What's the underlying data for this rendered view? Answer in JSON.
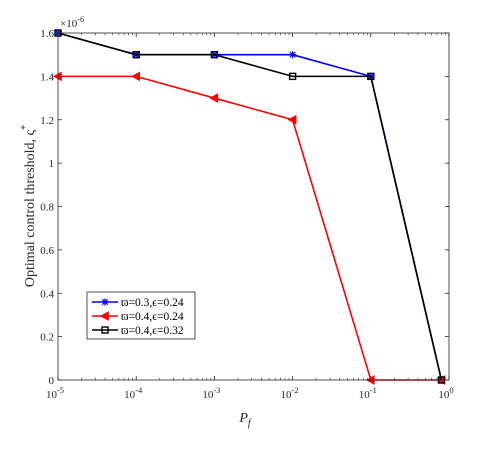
{
  "chart_data": {
    "type": "line",
    "x_scale": "log",
    "x": [
      1e-05,
      0.0001,
      0.001,
      0.01,
      0.1,
      1
    ],
    "x_tick_labels": [
      {
        "base": "10",
        "exp": "-5"
      },
      {
        "base": "10",
        "exp": "-4"
      },
      {
        "base": "10",
        "exp": "-3"
      },
      {
        "base": "10",
        "exp": "-2"
      },
      {
        "base": "10",
        "exp": "-1"
      },
      {
        "base": "10",
        "exp": "0"
      }
    ],
    "y_ticks": [
      0,
      0.2,
      0.4,
      0.6,
      0.8,
      1,
      1.2,
      1.4,
      1.6
    ],
    "y_tick_labels": [
      "0",
      "0.2",
      "0.4",
      "0.6",
      "0.8",
      "1",
      "1.2",
      "1.4",
      "1.6"
    ],
    "ylim": [
      0,
      1.6
    ],
    "y_multiplier": {
      "base": "×10",
      "exp": "-6"
    },
    "xlabel": {
      "main": "P",
      "sub": "f"
    },
    "ylabel": {
      "main": "Optimal control threshold, ς",
      "sup": "*"
    },
    "grid": false,
    "legend_position": "lower-left",
    "series": [
      {
        "name": "ϖ=0.3,ϵ=0.24",
        "color": "#0000ff",
        "marker": "asterisk",
        "x": [
          1e-05,
          0.0001,
          0.001,
          0.01,
          0.1,
          0.8
        ],
        "values": [
          1.6,
          1.5,
          1.5,
          1.5,
          1.4,
          0
        ]
      },
      {
        "name": "ϖ=0.4,ϵ=0.24",
        "color": "#ff0000",
        "marker": "triangle-left",
        "x": [
          1e-05,
          0.0001,
          0.001,
          0.01,
          0.1,
          0.8
        ],
        "values": [
          1.4,
          1.4,
          1.3,
          1.2,
          0,
          0
        ]
      },
      {
        "name": "ϖ=0.4,ϵ=0.32",
        "color": "#000000",
        "marker": "square",
        "x": [
          1e-05,
          0.0001,
          0.001,
          0.01,
          0.1,
          0.8
        ],
        "values": [
          1.6,
          1.5,
          1.5,
          1.4,
          1.4,
          0
        ]
      }
    ]
  }
}
